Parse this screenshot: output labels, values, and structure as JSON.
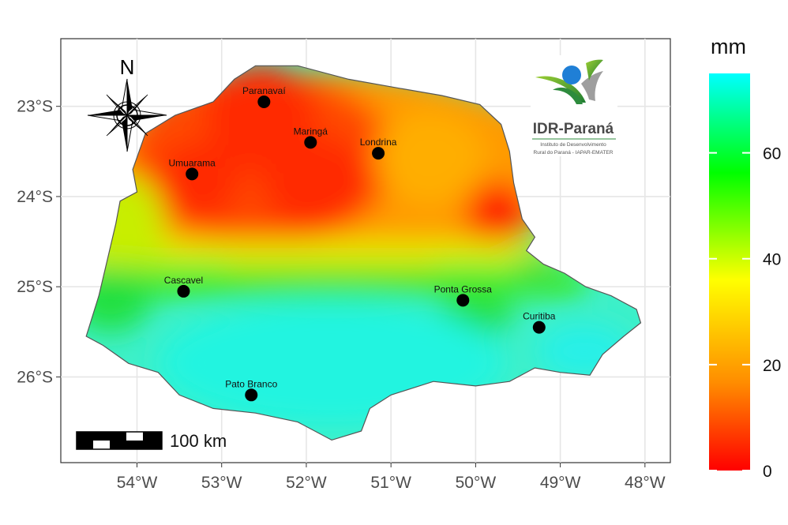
{
  "legend": {
    "title": "mm",
    "ticks": [
      0,
      20,
      40,
      60
    ],
    "range": [
      0,
      75
    ],
    "colors": [
      "#ff0000",
      "#ff8c00",
      "#ffff00",
      "#00ff00",
      "#00ffff"
    ]
  },
  "axes": {
    "x_ticks": [
      "54°W",
      "53°W",
      "52°W",
      "51°W",
      "50°W",
      "49°W",
      "48°W"
    ],
    "x_values": [
      -54,
      -53,
      -52,
      -51,
      -50,
      -49,
      -48
    ],
    "y_ticks": [
      "23°S",
      "24°S",
      "25°S",
      "26°S"
    ],
    "y_values": [
      -23,
      -24,
      -25,
      -26
    ],
    "lon_range": [
      -54.9,
      -47.7
    ],
    "lat_range": [
      -26.95,
      -22.25
    ],
    "grid": true
  },
  "cities": [
    {
      "name": "Paranavaí",
      "lon": -52.5,
      "lat": -22.95
    },
    {
      "name": "Maringá",
      "lon": -51.95,
      "lat": -23.4
    },
    {
      "name": "Londrina",
      "lon": -51.15,
      "lat": -23.52
    },
    {
      "name": "Umuarama",
      "lon": -53.35,
      "lat": -23.75
    },
    {
      "name": "Cascavel",
      "lon": -53.45,
      "lat": -25.05
    },
    {
      "name": "Ponta Grossa",
      "lon": -50.15,
      "lat": -25.15
    },
    {
      "name": "Curitiba",
      "lon": -49.25,
      "lat": -25.45
    },
    {
      "name": "Pato Branco",
      "lon": -52.65,
      "lat": -26.2
    }
  ],
  "scale_bar": {
    "label": "100 km"
  },
  "north_arrow": {
    "label": "N"
  },
  "logo": {
    "title": "IDR-Paraná",
    "subtitle_1": "Instituto de Desenvolvimento",
    "subtitle_2": "Rural do Paraná - IAPAR-EMATER"
  },
  "icons": [
    "compass-rose-icon",
    "idr-parana-logo-icon"
  ]
}
